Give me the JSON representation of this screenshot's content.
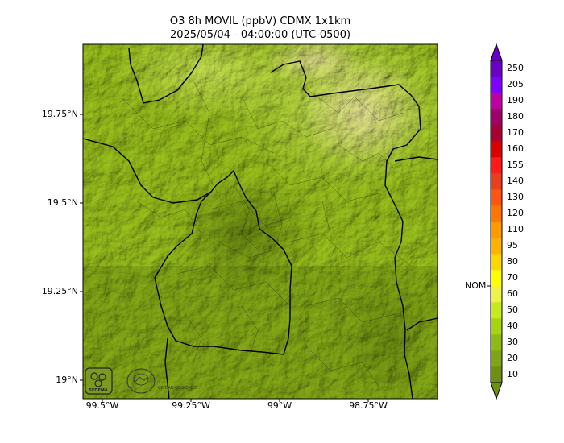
{
  "title": {
    "line1": "O3 8h MOVIL (ppbV) CDMX 1x1km",
    "line2": "2025/05/04 - 04:00:00 (UTC-0500)"
  },
  "axes": {
    "lat_labels": [
      "19.75°N",
      "19.5°N",
      "19.25°N",
      "19°N"
    ],
    "lon_labels": [
      "99.5°W",
      "99.25°W",
      "99°W",
      "98.75°W"
    ]
  },
  "colorbar": {
    "levels": [
      "10",
      "20",
      "30",
      "40",
      "50",
      "60",
      "70",
      "80",
      "95",
      "110",
      "120",
      "130",
      "140",
      "155",
      "160",
      "170",
      "180",
      "190",
      "205",
      "250"
    ],
    "colors": [
      "#6e8f10",
      "#7ea515",
      "#8dbb14",
      "#a6d40f",
      "#c6ea1a",
      "#eef24a",
      "#ffff00",
      "#ffd700",
      "#ffb300",
      "#ff9900",
      "#ff7700",
      "#ff5511",
      "#e8401a",
      "#ff1a1a",
      "#dd0000",
      "#aa0033",
      "#a0006a",
      "#c000a0",
      "#8000ff",
      "#6a00c8"
    ],
    "marker_label": "NOM",
    "marker_value": 65
  },
  "logos": {
    "left": "SEDEMA",
    "right": "CIUDAD DE MÉXICO"
  }
}
